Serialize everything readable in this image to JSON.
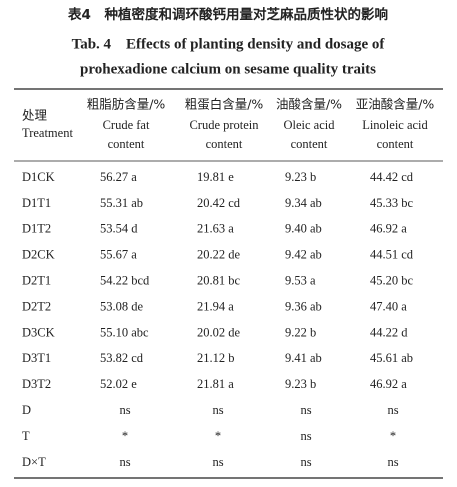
{
  "header": {
    "title": "表4　种植密度和调环酸钙用量对芝麻品质性状的影响",
    "subtitle": [
      "Tab. 4　Effects of planting density and dosage of",
      "prohexadione calcium on sesame quality traits"
    ]
  },
  "table": {
    "header": [
      [
        "处理",
        "Treatment"
      ],
      [
        "粗脂肪含量/%",
        "Crude fat",
        "content"
      ],
      [
        "粗蛋白含量/%",
        "Crude protein",
        "content"
      ],
      [
        "油酸含量/%",
        "Oleic acid",
        "content"
      ],
      [
        "亚油酸含量/%",
        "Linoleic acid",
        "content"
      ]
    ],
    "rows": [
      [
        "D1CK",
        "56.27 a",
        "19.81 e",
        "9.23 b",
        "44.42 cd"
      ],
      [
        "D1T1",
        "55.31 ab",
        "20.42 cd",
        "9.34 ab",
        "45.33 bc"
      ],
      [
        "D1T2",
        "53.54 d",
        "21.63 a",
        "9.40 ab",
        "46.92 a"
      ],
      [
        "D2CK",
        "55.67 a",
        "20.22 de",
        "9.42 ab",
        "44.51 cd"
      ],
      [
        "D2T1",
        "54.22 bcd",
        "20.81 bc",
        "9.53 a",
        "45.20 bc"
      ],
      [
        "D2T2",
        "53.08 de",
        "21.94 a",
        "9.36 ab",
        "47.40 a"
      ],
      [
        "D3CK",
        "55.10 abc",
        "20.02 de",
        "9.22 b",
        "44.22 d"
      ],
      [
        "D3T1",
        "53.82 cd",
        "21.12 b",
        "9.41 ab",
        "45.61 ab"
      ],
      [
        "D3T2",
        "52.02 e",
        "21.81 a",
        "9.23 b",
        "46.92 a"
      ],
      [
        "D",
        "ns",
        "ns",
        "ns",
        "ns"
      ],
      [
        "T",
        "*",
        "*",
        "ns",
        "*"
      ],
      [
        "D×T",
        "ns",
        "ns",
        "ns",
        "ns"
      ]
    ]
  }
}
